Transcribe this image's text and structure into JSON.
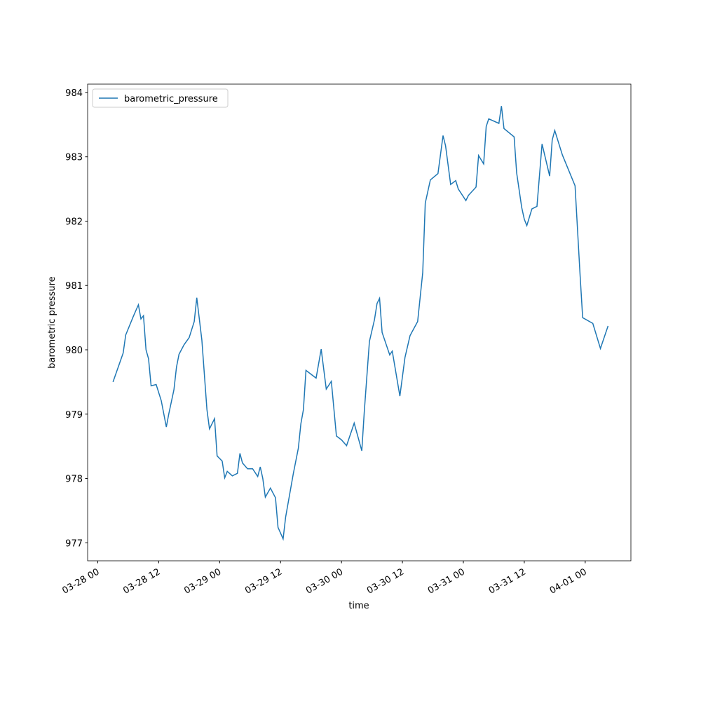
{
  "chart_data": {
    "type": "line",
    "xlabel": "time",
    "ylabel": "barometric pressure",
    "x": [
      "03-28 03:00",
      "03-28 05:00",
      "03-28 05:30",
      "03-28 07:00",
      "03-28 08:00",
      "03-28 08:30",
      "03-28 09:00",
      "03-28 09:30",
      "03-28 10:00",
      "03-28 10:30",
      "03-28 11:30",
      "03-28 12:30",
      "03-28 13:30",
      "03-28 14:00",
      "03-28 15:00",
      "03-28 15:30",
      "03-28 16:00",
      "03-28 17:00",
      "03-28 18:00",
      "03-28 19:00",
      "03-28 19:30",
      "03-28 20:30",
      "03-28 21:30",
      "03-28 22:00",
      "03-28 23:00",
      "03-28 23:30",
      "03-29 00:30",
      "03-29 01:00",
      "03-29 01:30",
      "03-29 02:30",
      "03-29 03:30",
      "03-29 04:00",
      "03-29 04:30",
      "03-29 05:30",
      "03-29 06:30",
      "03-29 07:30",
      "03-29 08:00",
      "03-29 08:30",
      "03-29 09:00",
      "03-29 10:00",
      "03-29 11:00",
      "03-29 11:30",
      "03-29 12:30",
      "03-29 13:00",
      "03-29 14:30",
      "03-29 15:30",
      "03-29 16:00",
      "03-29 16:30",
      "03-29 17:00",
      "03-29 19:00",
      "03-29 20:00",
      "03-29 21:00",
      "03-29 22:00",
      "03-29 23:00",
      "03-30 00:00",
      "03-30 01:00",
      "03-30 02:30",
      "03-30 04:00",
      "03-30 04:30",
      "03-30 05:30",
      "03-30 06:30",
      "03-30 07:00",
      "03-30 07:30",
      "03-30 08:00",
      "03-30 09:30",
      "03-30 10:00",
      "03-30 11:30",
      "03-30 12:30",
      "03-30 13:30",
      "03-30 15:00",
      "03-30 16:00",
      "03-30 16:30",
      "03-30 17:30",
      "03-30 19:00",
      "03-30 20:00",
      "03-30 20:30",
      "03-30 21:30",
      "03-30 22:30",
      "03-30 23:00",
      "03-31 00:30",
      "03-31 01:00",
      "03-31 02:30",
      "03-31 03:00",
      "03-31 04:00",
      "03-31 04:30",
      "03-31 05:00",
      "03-31 07:00",
      "03-31 07:30",
      "03-31 08:00",
      "03-31 10:00",
      "03-31 10:30",
      "03-31 11:30",
      "03-31 12:00",
      "03-31 12:30",
      "03-31 13:30",
      "03-31 14:30",
      "03-31 15:30",
      "03-31 17:00",
      "03-31 17:30",
      "03-31 18:00",
      "03-31 19:30",
      "03-31 22:00",
      "03-31 23:00",
      "03-31 23:30",
      "04-01 01:30",
      "04-01 03:00",
      "04-01 04:30"
    ],
    "series": [
      {
        "name": "barometric_pressure",
        "color": "#1f77b4",
        "values": [
          979.5,
          979.95,
          980.23,
          980.52,
          980.7,
          980.48,
          980.53,
          980.0,
          979.86,
          979.44,
          979.46,
          979.21,
          978.8,
          979.01,
          979.38,
          979.73,
          979.93,
          980.08,
          980.19,
          980.44,
          980.81,
          980.15,
          979.07,
          978.77,
          978.93,
          978.35,
          978.27,
          978.01,
          978.11,
          978.04,
          978.08,
          978.39,
          978.24,
          978.15,
          978.15,
          978.03,
          978.18,
          978.0,
          977.71,
          977.85,
          977.7,
          977.24,
          977.06,
          977.4,
          978.07,
          978.47,
          978.85,
          979.07,
          979.68,
          979.56,
          980.01,
          979.39,
          979.51,
          978.66,
          978.6,
          978.51,
          978.86,
          978.43,
          979.05,
          980.13,
          980.47,
          980.72,
          980.8,
          980.27,
          979.92,
          979.98,
          979.28,
          979.88,
          980.22,
          980.44,
          981.2,
          982.28,
          982.64,
          982.74,
          983.33,
          983.17,
          982.57,
          982.63,
          982.5,
          982.32,
          982.4,
          982.53,
          983.02,
          982.89,
          983.47,
          983.59,
          983.52,
          983.79,
          983.44,
          983.31,
          982.75,
          982.21,
          982.03,
          981.93,
          982.19,
          982.23,
          983.2,
          982.7,
          983.26,
          983.41,
          983.03,
          982.55,
          981.15,
          980.5,
          980.41,
          980.02,
          980.37
        ]
      }
    ],
    "xlim": [
      "03-27 22:00",
      "04-01 09:00"
    ],
    "xticks": [
      "03-28 00",
      "03-28 12",
      "03-29 00",
      "03-29 12",
      "03-30 00",
      "03-30 12",
      "03-31 00",
      "03-31 12",
      "04-01 00"
    ],
    "ylim": [
      976.72,
      984.13
    ],
    "yticks": [
      977,
      978,
      979,
      980,
      981,
      982,
      983,
      984
    ],
    "legend": "upper left"
  }
}
